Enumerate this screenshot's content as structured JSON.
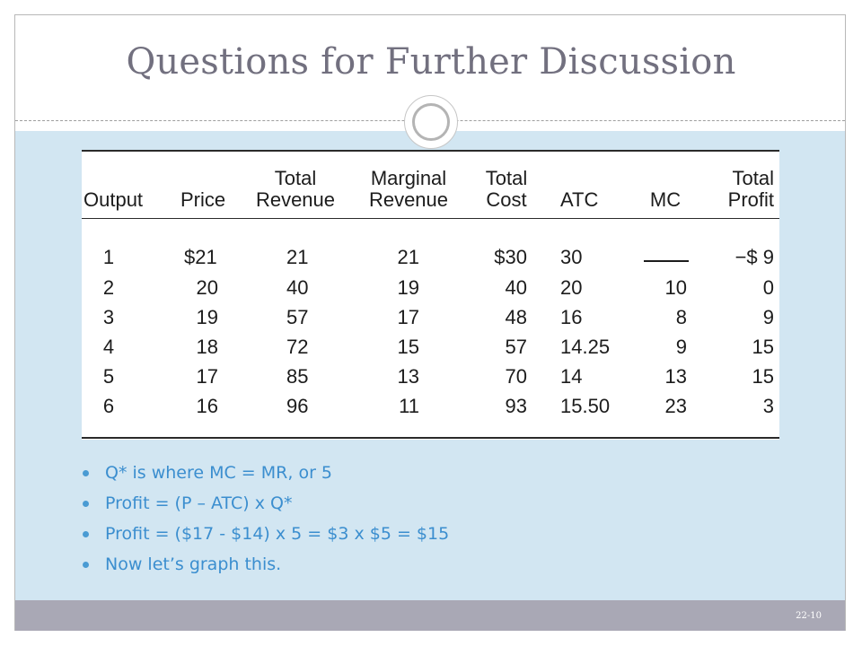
{
  "slide": {
    "title": "Questions for Further Discussion",
    "slide_number": "22-10"
  },
  "table": {
    "headers": [
      [
        "",
        "Output"
      ],
      [
        "",
        "Price"
      ],
      [
        "Total",
        "Revenue"
      ],
      [
        "Marginal",
        "Revenue"
      ],
      [
        "Total",
        "Cost"
      ],
      [
        "",
        "ATC"
      ],
      [
        "",
        "MC"
      ],
      [
        "Total",
        "Profit"
      ]
    ],
    "rows": [
      [
        "1",
        "$21",
        "21",
        "21",
        "$30",
        "30",
        "",
        "−$  9"
      ],
      [
        "2",
        "20",
        "40",
        "19",
        "40",
        "20",
        "10",
        "0"
      ],
      [
        "3",
        "19",
        "57",
        "17",
        "48",
        "16",
        "8",
        "9"
      ],
      [
        "4",
        "18",
        "72",
        "15",
        "57",
        "14.25",
        "9",
        "15"
      ],
      [
        "5",
        "17",
        "85",
        "13",
        "70",
        "14",
        "13",
        "15"
      ],
      [
        "6",
        "16",
        "96",
        "11",
        "93",
        "15.50",
        "23",
        "3"
      ]
    ]
  },
  "bullets": [
    "Q* is where MC = MR, or 5",
    "Profit = (P – ATC) x Q*",
    "Profit = ($17 - $14) x 5 = $3 x $5 = $15",
    "Now let’s graph this."
  ]
}
